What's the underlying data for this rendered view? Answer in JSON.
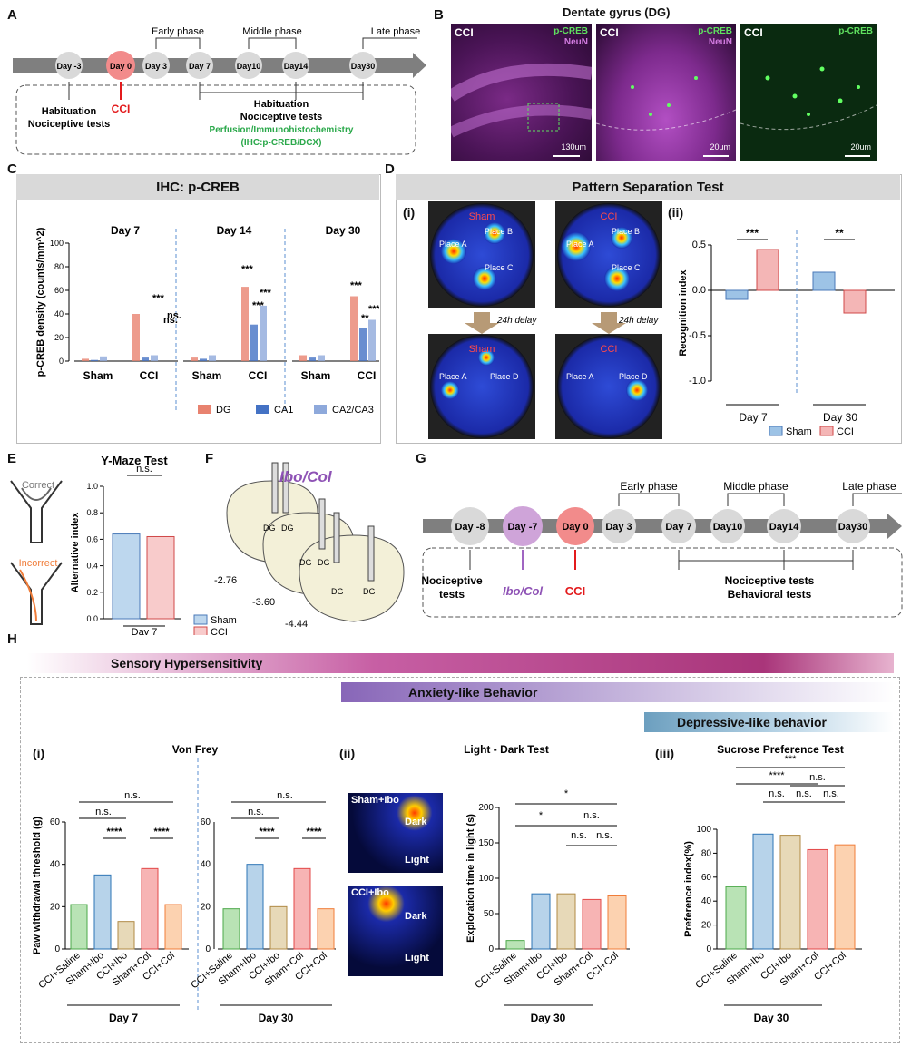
{
  "panels": {
    "A": "A",
    "B": "B",
    "C": "C",
    "D": "D",
    "E": "E",
    "F": "F",
    "G": "G",
    "H": "H"
  },
  "timelineA": {
    "days": [
      "Day -3",
      "Day 0",
      "Day 3",
      "Day 7",
      "Day10",
      "Day14",
      "Day30"
    ],
    "phases": [
      "Early phase",
      "Middle phase",
      "Late phase"
    ],
    "notes": {
      "hab1": "Habituation",
      "hab2": "Nociceptive tests",
      "cci": "CCI",
      "hab3": "Habituation",
      "noc": "Nociceptive tests",
      "perf": "Perfusion/Immunohistochemistry",
      "ihc": "(IHC:p-CREB/DCX)"
    }
  },
  "panelB": {
    "title": "Dentate gyrus (DG)",
    "cci": "CCI",
    "pcreb": "p-CREB",
    "neun": "NeuN",
    "scale1": "130um",
    "scale2": "20um",
    "scale3": "20um"
  },
  "panelC": {
    "header": "IHC: p-CREB"
  },
  "panelD": {
    "header": "Pattern Separation Test",
    "sub1": "(i)",
    "sub2": "(ii)",
    "sham": "Sham",
    "cci": "CCI",
    "placeA": "Place A",
    "placeB": "Place B",
    "placeC": "Place C",
    "placeD": "Place D",
    "delay": "24h delay"
  },
  "panelE": {
    "correct": "Correct",
    "incorrect": "Incorrect"
  },
  "panelF": {
    "title": "Ibo/Col",
    "dg": "DG",
    "c1": "-2.76",
    "c2": "-3.60",
    "c3": "-4.44"
  },
  "timelineG": {
    "days": [
      "Day -8",
      "Day -7",
      "Day 0",
      "Day 3",
      "Day 7",
      "Day10",
      "Day14",
      "Day30"
    ],
    "phases": [
      "Early phase",
      "Middle phase",
      "Late phase"
    ],
    "notes": {
      "noc1": "Nociceptive",
      "noc2": "tests",
      "ibo": "Ibo/Col",
      "cci": "CCI",
      "noc3": "Nociceptive tests",
      "beh": "Behavioral tests"
    }
  },
  "panelH": {
    "band1": "Sensory Hypersensitivity",
    "band2": "Anxiety-like Behavior",
    "band3": "Depressive-like behavior",
    "sub1": "(i)",
    "sub2": "(ii)",
    "sub3": "(iii)",
    "shamIbo": "Sham+Ibo",
    "cciIbo": "CCI+Ibo",
    "dark": "Dark",
    "light": "Light"
  },
  "chart_data": [
    {
      "type": "bar",
      "id": "C",
      "groups": [
        "Day 7",
        "Day 14",
        "Day 30"
      ],
      "categories": [
        "Sham",
        "CCI"
      ],
      "series": [
        {
          "name": "DG",
          "color": "#e8826f",
          "values": [
            [
              2,
              40
            ],
            [
              3,
              63
            ],
            [
              5,
              55
            ]
          ]
        },
        {
          "name": "CA1",
          "color": "#4472c4",
          "values": [
            [
              1,
              3
            ],
            [
              2,
              31
            ],
            [
              3,
              28
            ]
          ]
        },
        {
          "name": "CA2/CA3",
          "color": "#8ea9db",
          "values": [
            [
              4,
              5
            ],
            [
              5,
              47
            ],
            [
              5,
              35
            ]
          ]
        }
      ],
      "ylabel": "p-CREB density (counts/mm^2)",
      "ylim": [
        0,
        100
      ],
      "yticks": [
        "0",
        "20",
        "40",
        "60",
        "80",
        "100"
      ],
      "annotations": [
        "***",
        "ns.",
        "ns.",
        "***",
        "***",
        "***",
        "***",
        "**",
        "***"
      ]
    },
    {
      "type": "bar",
      "id": "Dii",
      "groups": [
        "Day 7",
        "Day 30"
      ],
      "categories": [
        "Sham",
        "CCI"
      ],
      "values": [
        [
          -0.1,
          0.45
        ],
        [
          0.2,
          -0.25
        ]
      ],
      "ylabel": "Recognition index",
      "ylim": [
        -1.0,
        0.5
      ],
      "yticks": [
        "-1.0",
        "-0.5",
        "0.0",
        "0.5"
      ],
      "legend": [
        "Sham",
        "CCI"
      ],
      "annotations": [
        "***",
        "**"
      ]
    },
    {
      "type": "bar",
      "id": "E",
      "title": "Y-Maze Test",
      "categories": [
        "Sham",
        "CCI"
      ],
      "values": [
        0.64,
        0.62
      ],
      "ylabel": "Alternative index",
      "ylim": [
        0,
        1
      ],
      "yticks": [
        "0.0",
        "0.2",
        "0.4",
        "0.6",
        "0.8",
        "1.0"
      ],
      "xlabel": "Day 7",
      "legend": [
        "Sham",
        "CCI"
      ],
      "annotations": [
        "n.s."
      ]
    },
    {
      "type": "bar",
      "id": "Hi",
      "title": "Von Frey",
      "categories": [
        "CCI+Saline",
        "Sham+Ibo",
        "CCI+Ibo",
        "Sham+Col",
        "CCI+Col"
      ],
      "groups": [
        "Day 7",
        "Day 30"
      ],
      "values": [
        [
          21,
          35,
          13,
          38,
          21
        ],
        [
          19,
          40,
          20,
          38,
          19
        ]
      ],
      "ylabel": "Paw withdrawal threshold (g)",
      "ylim": [
        0,
        60
      ],
      "yticks": [
        "0",
        "20",
        "40",
        "60"
      ],
      "annotations": [
        "n.s.",
        "n.s.",
        "****",
        "****",
        "n.s.",
        "n.s.",
        "****",
        "****"
      ]
    },
    {
      "type": "bar",
      "id": "Hii",
      "title": "Light - Dark Test",
      "categories": [
        "CCI+Saline",
        "Sham+Ibo",
        "CCI+Ibo",
        "Sham+Col",
        "CCI+Col"
      ],
      "values": [
        12,
        78,
        78,
        70,
        75
      ],
      "ylabel": "Exploration time in light (s)",
      "ylim": [
        0,
        200
      ],
      "yticks": [
        "0",
        "50",
        "100",
        "150",
        "200"
      ],
      "xlabel": "Day 30",
      "annotations": [
        "*",
        "*",
        "n.s.",
        "n.s.",
        "n.s."
      ]
    },
    {
      "type": "bar",
      "id": "Hiii",
      "title": "Sucrose Preference Test",
      "categories": [
        "CCI+Saline",
        "Sham+Ibo",
        "CCI+Ibo",
        "Sham+Col",
        "CCI+Col"
      ],
      "values": [
        52,
        96,
        95,
        83,
        87
      ],
      "ylabel": "Preference index(%)",
      "ylim": [
        0,
        100
      ],
      "yticks": [
        "0",
        "20",
        "40",
        "60",
        "80",
        "100"
      ],
      "xlabel": "Day 30",
      "annotations": [
        "****",
        "***",
        "n.s.",
        "n.s.",
        "n.s.",
        "n.s."
      ]
    }
  ]
}
